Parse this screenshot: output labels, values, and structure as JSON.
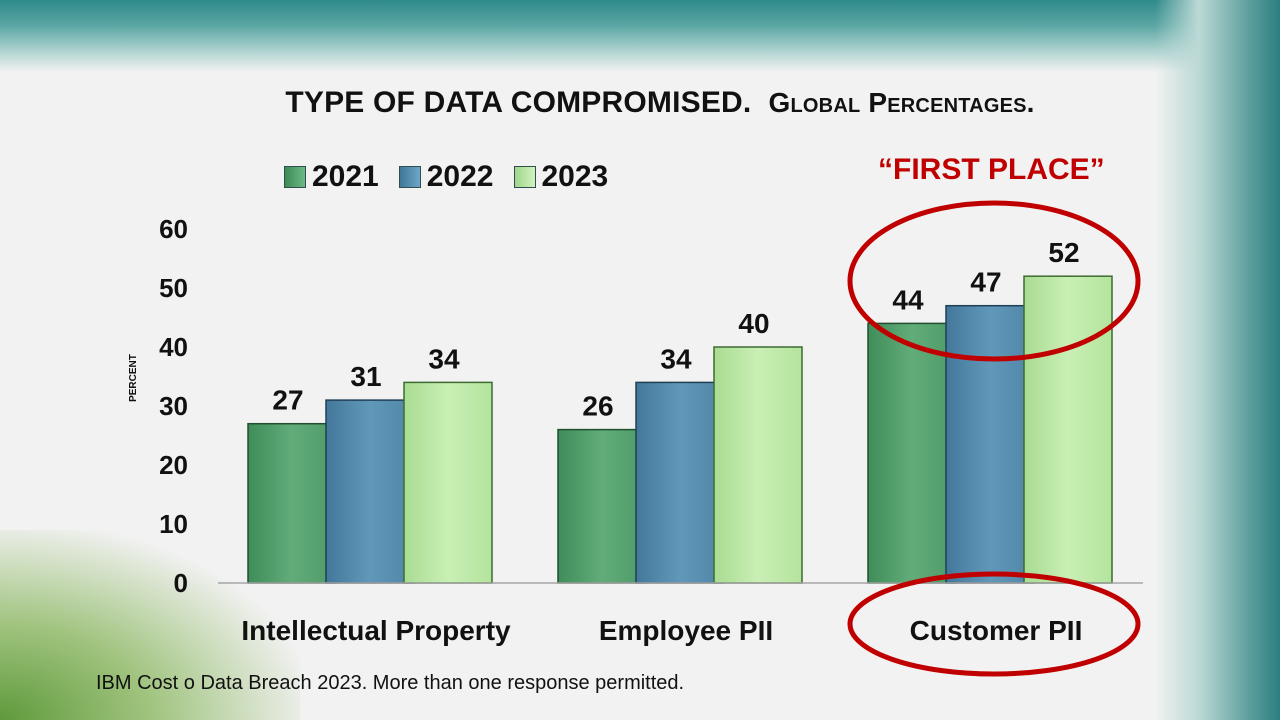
{
  "title": {
    "main": "TYPE OF DATA COMPROMISED.",
    "sub": "Global Percentages."
  },
  "annotation": "“FIRST PLACE”",
  "footnote": "IBM Cost o Data Breach 2023.  More than one response permitted.",
  "colors": {
    "series_2021": "#5aa874",
    "series_2022": "#5b93b5",
    "series_2023": "#bde8a6",
    "highlight": "#c00000"
  },
  "chart_data": {
    "type": "bar",
    "categories": [
      "Intellectual Property",
      "Employee PII",
      "Customer PII"
    ],
    "series": [
      {
        "name": "2021",
        "values": [
          27,
          26,
          44
        ]
      },
      {
        "name": "2022",
        "values": [
          31,
          34,
          47
        ]
      },
      {
        "name": "2023",
        "values": [
          34,
          40,
          52
        ]
      }
    ],
    "ylabel": "PERCENT",
    "ylim": [
      0,
      60
    ],
    "yticks": [
      "0",
      "10",
      "20",
      "30",
      "40",
      "50",
      "60"
    ],
    "grid": false,
    "legend_position": "top-left",
    "highlighted_category": "Customer PII"
  }
}
